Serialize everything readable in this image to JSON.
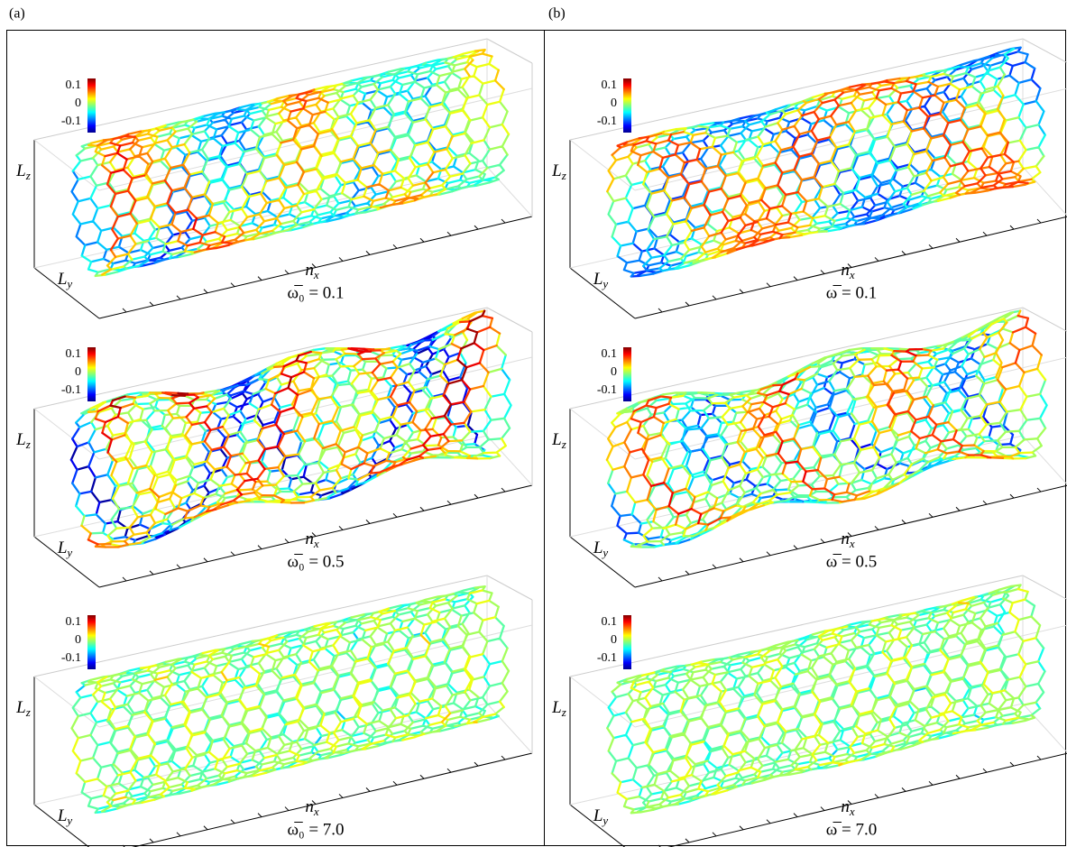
{
  "columns": [
    {
      "label": "(a)",
      "panels": [
        {
          "colorbar": [
            "0.1",
            "0",
            "-0.1"
          ],
          "axes": {
            "z": {
              "base": "L",
              "sub": "z"
            },
            "y": {
              "base": "L",
              "sub": "y"
            },
            "x": {
              "base": "n",
              "sub": "x"
            }
          },
          "caption": "ω̅₀ = 0.1"
        },
        {
          "colorbar": [
            "0.1",
            "0",
            "-0.1"
          ],
          "axes": {
            "z": {
              "base": "L",
              "sub": "z"
            },
            "y": {
              "base": "L",
              "sub": "y"
            },
            "x": {
              "base": "n",
              "sub": "x"
            }
          },
          "caption": "ω̅₀ = 0.5"
        },
        {
          "colorbar": [
            "0.1",
            "0",
            "-0.1"
          ],
          "axes": {
            "z": {
              "base": "L",
              "sub": "z"
            },
            "y": {
              "base": "L",
              "sub": "y"
            },
            "x": {
              "base": "n",
              "sub": "x"
            }
          },
          "caption": "ω̅₀ = 7.0"
        }
      ]
    },
    {
      "label": "(b)",
      "panels": [
        {
          "colorbar": [
            "0.1",
            "0",
            "-0.1"
          ],
          "axes": {
            "z": {
              "base": "L",
              "sub": "z"
            },
            "y": {
              "base": "L",
              "sub": "y"
            },
            "x": {
              "base": "n",
              "sub": "x"
            }
          },
          "caption": "ω̅ = 0.1"
        },
        {
          "colorbar": [
            "0.1",
            "0",
            "-0.1"
          ],
          "axes": {
            "z": {
              "base": "L",
              "sub": "z"
            },
            "y": {
              "base": "L",
              "sub": "y"
            },
            "x": {
              "base": "n",
              "sub": "x"
            }
          },
          "caption": "ω̅ = 0.5"
        },
        {
          "colorbar": [
            "0.1",
            "0",
            "-0.1"
          ],
          "axes": {
            "z": {
              "base": "L",
              "sub": "z"
            },
            "y": {
              "base": "L",
              "sub": "y"
            },
            "x": {
              "base": "n",
              "sub": "x"
            }
          },
          "caption": "ω̅ = 7.0"
        }
      ]
    }
  ]
}
